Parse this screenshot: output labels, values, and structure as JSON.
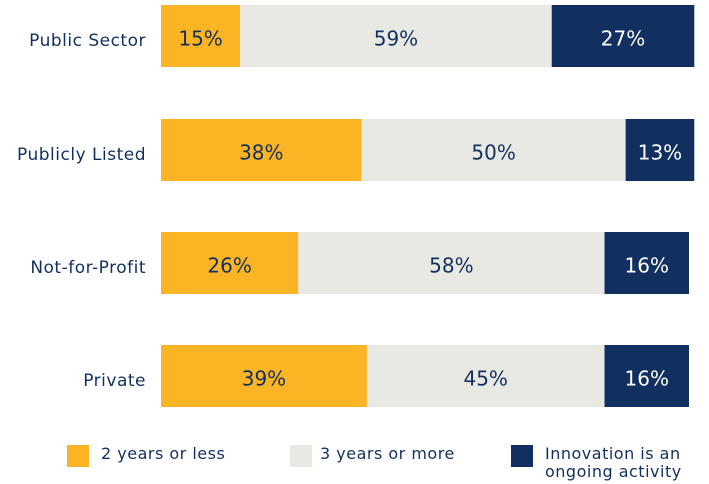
{
  "chart_data": {
    "type": "stacked_bar_horizontal",
    "categories": [
      "Public Sector",
      "Publicly Listed",
      "Not-for-Profit",
      "Private"
    ],
    "series": [
      {
        "name": "2 years or less",
        "color": "#fbb424",
        "values": [
          15,
          38,
          26,
          39
        ],
        "value_labels": [
          "15%",
          "38%",
          "26%",
          "39%"
        ]
      },
      {
        "name": "3 years or more",
        "color": "#e9e9e4",
        "values": [
          59,
          50,
          58,
          45
        ],
        "value_labels": [
          "59%",
          "50%",
          "58%",
          "45%"
        ]
      },
      {
        "name": "Innovation is an ongoing activity",
        "color": "#12305f",
        "values": [
          27,
          13,
          16,
          16
        ],
        "value_labels": [
          "27%",
          "13%",
          "16%",
          "16%"
        ]
      }
    ]
  }
}
